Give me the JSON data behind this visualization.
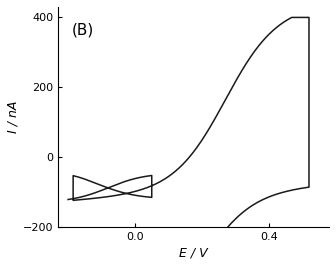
{
  "title": "(B)",
  "xlabel": "E / V",
  "ylabel": "I / nA",
  "xlim": [
    -0.23,
    0.58
  ],
  "ylim": [
    -200,
    430
  ],
  "yticks": [
    -200.0,
    0.0,
    200.0,
    400.0
  ],
  "xticks": [
    0.0,
    0.4
  ],
  "line_color": "#1a1a1a",
  "line_width": 1.1,
  "bg_color": "#ffffff",
  "label_fontsize": 9,
  "tick_fontsize": 8,
  "title_fontsize": 11
}
